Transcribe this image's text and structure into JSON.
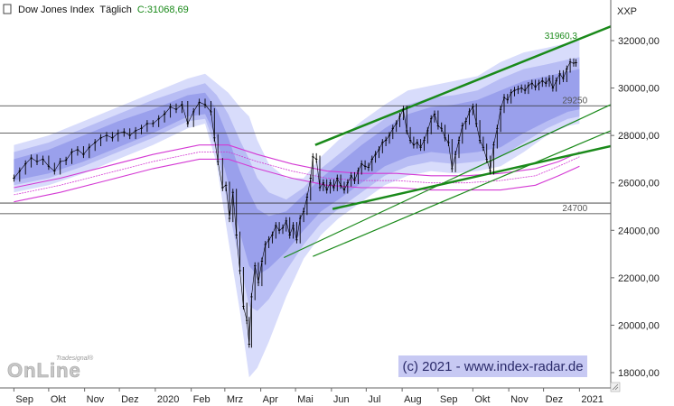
{
  "header": {
    "symbol": "Dow Jones Index",
    "interval": "Täglich",
    "last_close": "C:31068,69"
  },
  "axis_corner_label": "XXP",
  "watermark_top": "Tradesignal®",
  "watermark_main": "OnLine",
  "copyright": "(c) 2021 - www.index-radar.de",
  "colors": {
    "price": "#000000",
    "band_light": "#d8dcfb",
    "band_mid": "#b8bdf4",
    "band_dark": "#9aa0ec",
    "ma": "#d43ad4",
    "channel": "#1a8a1a",
    "label_green": "#1a8a1a",
    "level_line": "#333333"
  },
  "chart_data": {
    "type": "line",
    "title": "",
    "xlabel": "",
    "ylabel": "",
    "ylim": [
      17600,
      32800
    ],
    "y_ticks": [
      "18000,00",
      "20000,00",
      "22000,00",
      "24000,00",
      "26000,00",
      "28000,00",
      "30000,00",
      "32000,00"
    ],
    "y_tick_values": [
      18000,
      20000,
      22000,
      24000,
      26000,
      28000,
      30000,
      32000
    ],
    "x_ticks": [
      "Sep",
      "Okt",
      "Nov",
      "Dez",
      "2020",
      "Feb",
      "Mrz",
      "Apr",
      "Mai",
      "Jun",
      "Jul",
      "Aug",
      "Sep",
      "Okt",
      "Nov",
      "Dez",
      "2021"
    ],
    "x_tick_days": [
      0,
      30,
      61,
      91,
      122,
      153,
      182,
      213,
      243,
      274,
      304,
      335,
      366,
      396,
      427,
      457,
      488
    ],
    "x_range_days": [
      -12,
      515
    ],
    "price_series": [
      [
        0,
        26200
      ],
      [
        5,
        26500
      ],
      [
        10,
        26800
      ],
      [
        15,
        27050
      ],
      [
        20,
        26900
      ],
      [
        25,
        27000
      ],
      [
        30,
        26700
      ],
      [
        35,
        26500
      ],
      [
        40,
        26900
      ],
      [
        45,
        26950
      ],
      [
        50,
        27300
      ],
      [
        55,
        27400
      ],
      [
        60,
        27200
      ],
      [
        65,
        27500
      ],
      [
        70,
        27700
      ],
      [
        75,
        27900
      ],
      [
        80,
        28000
      ],
      [
        85,
        27900
      ],
      [
        90,
        28100
      ],
      [
        95,
        28150
      ],
      [
        100,
        28000
      ],
      [
        105,
        28200
      ],
      [
        110,
        28300
      ],
      [
        115,
        28500
      ],
      [
        120,
        28500
      ],
      [
        125,
        28700
      ],
      [
        130,
        28900
      ],
      [
        135,
        29200
      ],
      [
        140,
        29100
      ],
      [
        145,
        29300
      ],
      [
        150,
        28500
      ],
      [
        155,
        29000
      ],
      [
        160,
        29400
      ],
      [
        165,
        29300
      ],
      [
        170,
        29000
      ],
      [
        173,
        27900
      ],
      [
        176,
        26900
      ],
      [
        180,
        25800
      ],
      [
        183,
        25900
      ],
      [
        186,
        24500
      ],
      [
        189,
        25600
      ],
      [
        192,
        23800
      ],
      [
        195,
        22300
      ],
      [
        198,
        20800
      ],
      [
        201,
        20200
      ],
      [
        203,
        19200
      ],
      [
        205,
        21200
      ],
      [
        208,
        22500
      ],
      [
        211,
        21800
      ],
      [
        214,
        22700
      ],
      [
        217,
        23400
      ],
      [
        220,
        23600
      ],
      [
        223,
        23800
      ],
      [
        226,
        24200
      ],
      [
        229,
        24000
      ],
      [
        232,
        24100
      ],
      [
        235,
        24400
      ],
      [
        238,
        23800
      ],
      [
        241,
        24200
      ],
      [
        244,
        23600
      ],
      [
        247,
        24500
      ],
      [
        250,
        24800
      ],
      [
        253,
        25400
      ],
      [
        256,
        26200
      ],
      [
        258,
        27100
      ],
      [
        261,
        27000
      ],
      [
        264,
        25800
      ],
      [
        267,
        26000
      ],
      [
        270,
        25700
      ],
      [
        273,
        26000
      ],
      [
        276,
        25800
      ],
      [
        279,
        26200
      ],
      [
        282,
        25900
      ],
      [
        285,
        25700
      ],
      [
        288,
        26000
      ],
      [
        291,
        26300
      ],
      [
        294,
        26100
      ],
      [
        297,
        26500
      ],
      [
        300,
        26800
      ],
      [
        303,
        26700
      ],
      [
        306,
        26650
      ],
      [
        309,
        27000
      ],
      [
        312,
        27200
      ],
      [
        315,
        27400
      ],
      [
        318,
        27700
      ],
      [
        321,
        27800
      ],
      [
        324,
        28000
      ],
      [
        327,
        28300
      ],
      [
        330,
        28500
      ],
      [
        333,
        28800
      ],
      [
        336,
        29100
      ],
      [
        339,
        28200
      ],
      [
        342,
        27800
      ],
      [
        345,
        27600
      ],
      [
        348,
        27700
      ],
      [
        351,
        27500
      ],
      [
        354,
        27800
      ],
      [
        357,
        28200
      ],
      [
        360,
        28700
      ],
      [
        363,
        28900
      ],
      [
        366,
        28400
      ],
      [
        369,
        28300
      ],
      [
        372,
        27900
      ],
      [
        375,
        27700
      ],
      [
        378,
        26600
      ],
      [
        381,
        27200
      ],
      [
        384,
        27800
      ],
      [
        387,
        28400
      ],
      [
        390,
        28600
      ],
      [
        393,
        29000
      ],
      [
        396,
        29200
      ],
      [
        399,
        28500
      ],
      [
        402,
        27800
      ],
      [
        405,
        27500
      ],
      [
        408,
        27000
      ],
      [
        411,
        26500
      ],
      [
        414,
        27600
      ],
      [
        417,
        28300
      ],
      [
        420,
        29100
      ],
      [
        423,
        29600
      ],
      [
        426,
        29500
      ],
      [
        429,
        29800
      ],
      [
        432,
        29900
      ],
      [
        435,
        29950
      ],
      [
        438,
        30000
      ],
      [
        441,
        29900
      ],
      [
        444,
        30100
      ],
      [
        447,
        30200
      ],
      [
        450,
        30050
      ],
      [
        453,
        30200
      ],
      [
        456,
        30300
      ],
      [
        459,
        30200
      ],
      [
        462,
        30400
      ],
      [
        465,
        30000
      ],
      [
        468,
        30300
      ],
      [
        471,
        30600
      ],
      [
        474,
        30400
      ],
      [
        477,
        30800
      ],
      [
        480,
        31100
      ],
      [
        483,
        31050
      ],
      [
        485,
        31068.69
      ]
    ],
    "band_outer": [
      [
        0,
        25600,
        27600
      ],
      [
        30,
        25900,
        28000
      ],
      [
        60,
        26400,
        28600
      ],
      [
        90,
        27000,
        29200
      ],
      [
        120,
        27600,
        29800
      ],
      [
        150,
        28300,
        30400
      ],
      [
        165,
        28500,
        30600
      ],
      [
        175,
        26800,
        30200
      ],
      [
        185,
        23600,
        29800
      ],
      [
        195,
        20600,
        29200
      ],
      [
        203,
        17800,
        28800
      ],
      [
        210,
        18200,
        27800
      ],
      [
        220,
        19300,
        26800
      ],
      [
        235,
        21200,
        26200
      ],
      [
        250,
        22800,
        26200
      ],
      [
        265,
        23800,
        27100
      ],
      [
        280,
        24500,
        27800
      ],
      [
        300,
        25200,
        28600
      ],
      [
        320,
        25900,
        29300
      ],
      [
        340,
        26300,
        29900
      ],
      [
        360,
        26500,
        30100
      ],
      [
        380,
        26400,
        30300
      ],
      [
        400,
        26500,
        30500
      ],
      [
        420,
        26700,
        31100
      ],
      [
        440,
        27300,
        31500
      ],
      [
        460,
        28000,
        31700
      ],
      [
        478,
        28400,
        31900
      ],
      [
        488,
        28500,
        32000
      ]
    ],
    "band_mid": [
      [
        0,
        25900,
        27300
      ],
      [
        30,
        26200,
        27700
      ],
      [
        60,
        26700,
        28300
      ],
      [
        90,
        27300,
        28900
      ],
      [
        120,
        27900,
        29500
      ],
      [
        150,
        28600,
        30000
      ],
      [
        165,
        28700,
        30200
      ],
      [
        175,
        27400,
        29700
      ],
      [
        185,
        25000,
        28900
      ],
      [
        195,
        22600,
        27800
      ],
      [
        203,
        20800,
        27000
      ],
      [
        210,
        20600,
        26200
      ],
      [
        220,
        21100,
        25600
      ],
      [
        235,
        22300,
        25300
      ],
      [
        250,
        23400,
        25800
      ],
      [
        265,
        24300,
        26600
      ],
      [
        280,
        24900,
        27200
      ],
      [
        300,
        25600,
        28000
      ],
      [
        320,
        26300,
        28700
      ],
      [
        340,
        26700,
        29300
      ],
      [
        360,
        26900,
        29600
      ],
      [
        380,
        26800,
        29700
      ],
      [
        400,
        26900,
        29900
      ],
      [
        420,
        27100,
        30400
      ],
      [
        440,
        27700,
        30800
      ],
      [
        460,
        28300,
        31000
      ],
      [
        478,
        28700,
        31200
      ],
      [
        488,
        28800,
        31300
      ]
    ],
    "band_inner": [
      [
        0,
        26100,
        27000
      ],
      [
        30,
        26400,
        27400
      ],
      [
        60,
        26900,
        28000
      ],
      [
        90,
        27500,
        28600
      ],
      [
        120,
        28100,
        29100
      ],
      [
        150,
        28800,
        29700
      ],
      [
        165,
        28900,
        29800
      ],
      [
        175,
        27900,
        29100
      ],
      [
        185,
        26000,
        27900
      ],
      [
        195,
        23900,
        26500
      ],
      [
        203,
        22500,
        25600
      ],
      [
        210,
        22100,
        24900
      ],
      [
        220,
        22400,
        24600
      ],
      [
        235,
        23100,
        24800
      ],
      [
        250,
        24000,
        25500
      ],
      [
        265,
        24800,
        26200
      ],
      [
        280,
        25300,
        26800
      ],
      [
        300,
        26000,
        27600
      ],
      [
        320,
        26700,
        28300
      ],
      [
        340,
        27100,
        28900
      ],
      [
        360,
        27300,
        29200
      ],
      [
        380,
        27200,
        29300
      ],
      [
        400,
        27300,
        29500
      ],
      [
        420,
        27500,
        29900
      ],
      [
        440,
        28100,
        30300
      ],
      [
        460,
        28600,
        30500
      ],
      [
        478,
        29000,
        30700
      ],
      [
        488,
        29100,
        30800
      ]
    ],
    "moving_averages": [
      {
        "values": [
          [
            0,
            25800
          ],
          [
            40,
            26200
          ],
          [
            80,
            26700
          ],
          [
            120,
            27200
          ],
          [
            160,
            27600
          ],
          [
            185,
            27600
          ],
          [
            210,
            27200
          ],
          [
            240,
            26800
          ],
          [
            270,
            26500
          ],
          [
            300,
            26400
          ],
          [
            330,
            26400
          ],
          [
            360,
            26300
          ],
          [
            390,
            26300
          ],
          [
            420,
            26400
          ],
          [
            450,
            26600
          ],
          [
            470,
            26900
          ],
          [
            488,
            27300
          ]
        ]
      },
      {
        "values": [
          [
            0,
            25500
          ],
          [
            40,
            25900
          ],
          [
            80,
            26400
          ],
          [
            120,
            26900
          ],
          [
            160,
            27300
          ],
          [
            185,
            27300
          ],
          [
            210,
            26900
          ],
          [
            240,
            26500
          ],
          [
            270,
            26200
          ],
          [
            300,
            26100
          ],
          [
            330,
            26100
          ],
          [
            360,
            26000
          ],
          [
            390,
            26000
          ],
          [
            420,
            26100
          ],
          [
            450,
            26300
          ],
          [
            470,
            26700
          ],
          [
            488,
            27100
          ]
        ]
      },
      {
        "values": [
          [
            0,
            25200
          ],
          [
            40,
            25600
          ],
          [
            80,
            26100
          ],
          [
            120,
            26600
          ],
          [
            160,
            27000
          ],
          [
            185,
            27000
          ],
          [
            210,
            26600
          ],
          [
            240,
            26200
          ],
          [
            270,
            25900
          ],
          [
            300,
            25800
          ],
          [
            330,
            25800
          ],
          [
            360,
            25700
          ],
          [
            390,
            25700
          ],
          [
            420,
            25700
          ],
          [
            450,
            25900
          ],
          [
            470,
            26300
          ],
          [
            488,
            26700
          ]
        ]
      }
    ],
    "channels": [
      {
        "from": [
          260,
          27600
        ],
        "to": [
          515,
          32600
        ],
        "width": 2.5
      },
      {
        "from": [
          233,
          22850
        ],
        "to": [
          515,
          29300
        ],
        "width": 1.2
      },
      {
        "from": [
          258,
          22900
        ],
        "to": [
          515,
          28200
        ],
        "width": 1.2
      },
      {
        "from": [
          275,
          24900
        ],
        "to": [
          515,
          27550
        ],
        "width": 2.5
      }
    ],
    "horizontal_levels": [
      29250,
      28100,
      25150,
      24700
    ],
    "annotations": [
      {
        "text": "31960,3",
        "x": 472,
        "y": 31960
      },
      {
        "text": "29250",
        "x": 484,
        "y": 29250
      },
      {
        "text": "24700",
        "x": 484,
        "y": 24700
      }
    ]
  }
}
